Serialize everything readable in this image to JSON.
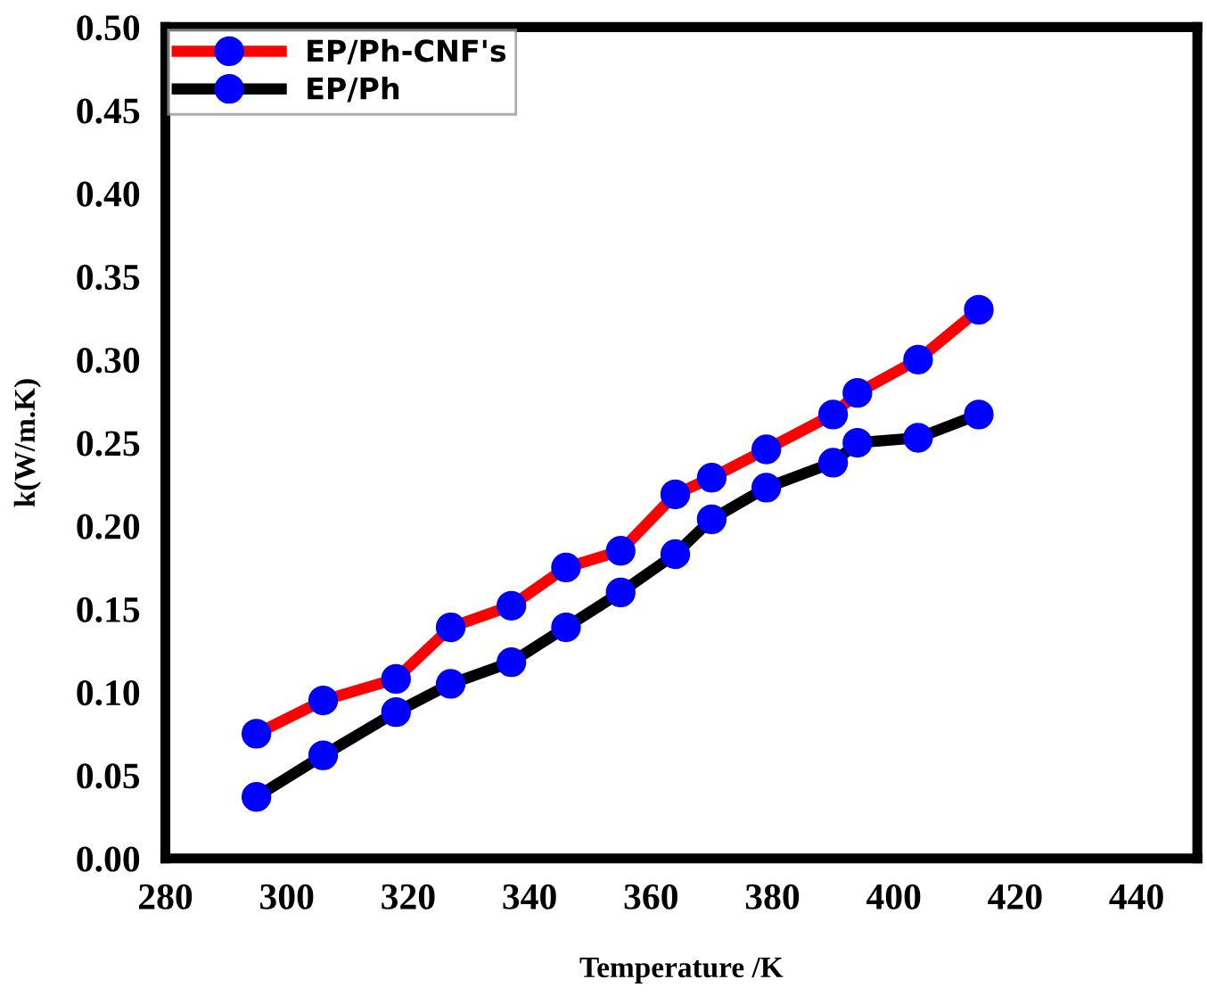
{
  "chart_data": {
    "type": "line",
    "xlabel": "Temperature /K",
    "ylabel": "k(W/m.K)",
    "x": [
      295,
      306,
      318,
      327,
      337,
      346,
      355,
      364,
      370,
      379,
      390,
      394,
      404,
      414
    ],
    "series": [
      {
        "name": "EP/Ph-CNF's",
        "color": "#ff0000",
        "values": [
          0.075,
          0.095,
          0.108,
          0.139,
          0.152,
          0.175,
          0.185,
          0.219,
          0.229,
          0.246,
          0.267,
          0.28,
          0.3,
          0.33
        ]
      },
      {
        "name": "EP/Ph",
        "color": "#000000",
        "values": [
          0.037,
          0.062,
          0.088,
          0.105,
          0.118,
          0.139,
          0.16,
          0.183,
          0.204,
          0.223,
          0.238,
          0.25,
          0.253,
          0.267
        ]
      }
    ],
    "xlim": [
      280,
      450
    ],
    "xticks": [
      280,
      300,
      320,
      340,
      360,
      380,
      400,
      420,
      440
    ],
    "ylim": [
      0,
      0.5
    ],
    "yticks": [
      {
        "value": 0,
        "label": "0.00"
      },
      {
        "value": 0.05,
        "label": "0.05"
      },
      {
        "value": 0.1,
        "label": "0.10"
      },
      {
        "value": 0.15,
        "label": "0.15"
      },
      {
        "value": 0.2,
        "label": "0.20"
      },
      {
        "value": 0.25,
        "label": "0.25"
      },
      {
        "value": 0.3,
        "label": "0.30"
      },
      {
        "value": 0.35,
        "label": "0.35"
      },
      {
        "value": 0.4,
        "label": "0.40"
      },
      {
        "value": 0.45,
        "label": "0.45"
      },
      {
        "value": 0.5,
        "label": "0.50"
      }
    ],
    "marker": "circle",
    "line_style": "solid",
    "grid": false,
    "legend": "top left"
  }
}
